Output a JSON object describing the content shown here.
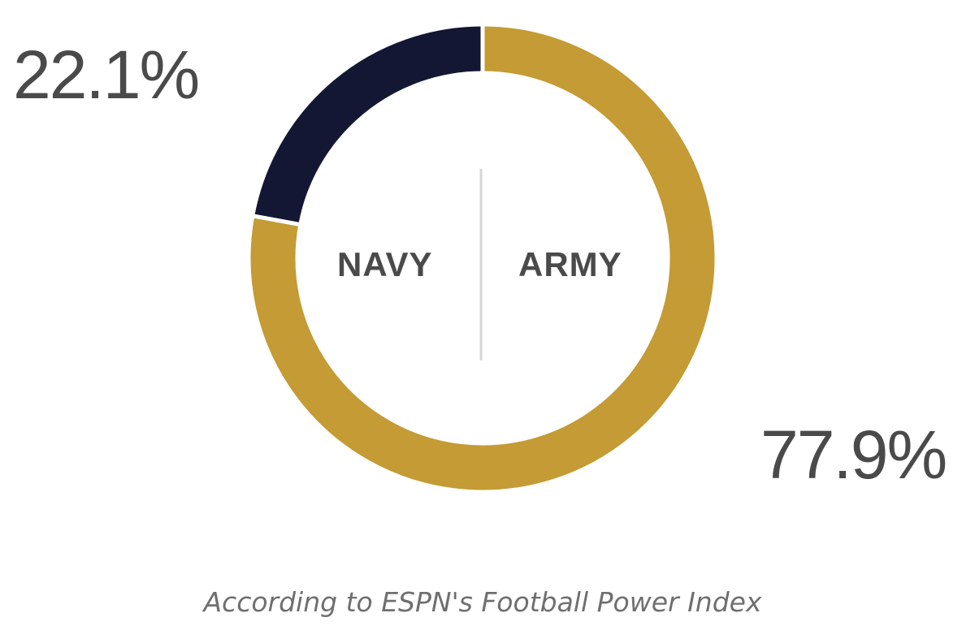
{
  "chart_data": {
    "type": "pie",
    "variant": "donut",
    "slices": [
      {
        "label": "NAVY",
        "value": 22.1,
        "value_label": "22.1%",
        "color": "#141733"
      },
      {
        "label": "ARMY",
        "value": 77.9,
        "value_label": "77.9%",
        "color": "#c49b34"
      }
    ],
    "divider_color": "#d6d6d6",
    "note": "According to ESPN's Football Power Index"
  }
}
